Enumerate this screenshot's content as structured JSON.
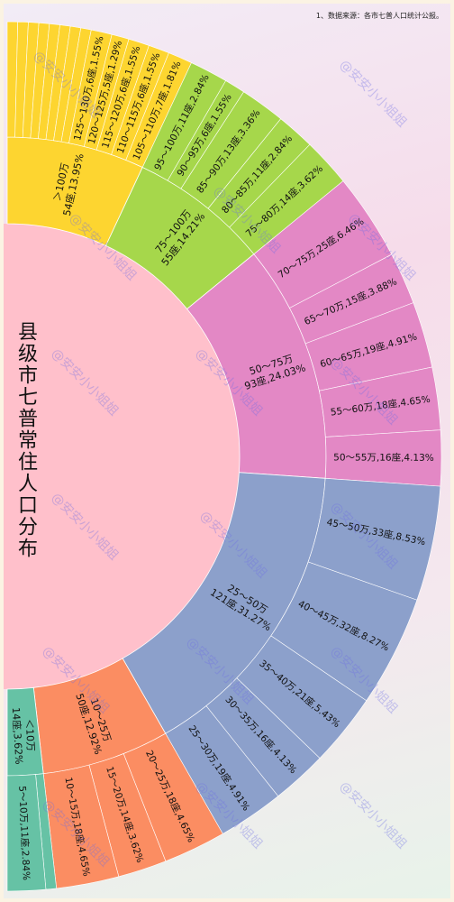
{
  "chart_data": {
    "type": "sunburst",
    "title": "县级市七普常住人口分布",
    "note": "1、数据来源：各市七普人口统计公报。",
    "watermark": "@安安小小姐姐",
    "center_color": "#ffc0cb",
    "children": [
      {
        "name": "＞100万",
        "label": "54座,13.95%",
        "value": 13.95,
        "color": "#fdd530",
        "children": [
          {
            "name": null,
            "value": 0.775
          },
          {
            "name": null,
            "value": 0.775
          },
          {
            "name": null,
            "value": 0.775
          },
          {
            "name": null,
            "value": 0.775
          },
          {
            "name": null,
            "value": 0.775
          },
          {
            "name": null,
            "value": 0.775
          },
          {
            "name": null,
            "value": 0.775
          },
          {
            "name": null,
            "value": 0.775
          },
          {
            "name": "125～130万,6座,1.55%",
            "value": 1.55
          },
          {
            "name": "120～125万,5座,1.29%",
            "value": 1.29
          },
          {
            "name": "115～120万,6座,1.55%",
            "value": 1.55
          },
          {
            "name": "110～115万,6座,1.55%",
            "value": 1.55
          },
          {
            "name": "105～110万,7座,1.81%",
            "value": 1.81
          }
        ]
      },
      {
        "name": "75～100万",
        "label": "55座,14.21%",
        "value": 14.21,
        "color": "#a6d74b",
        "children": [
          {
            "name": "95～100万,11座,2.84%",
            "value": 2.84
          },
          {
            "name": "90～95万,6座,1.55%",
            "value": 1.55
          },
          {
            "name": "85～90万,13座,3.36%",
            "value": 3.36
          },
          {
            "name": "80～85万,11座,2.84%",
            "value": 2.84
          },
          {
            "name": "75～80万,14座,3.62%",
            "value": 3.62
          }
        ]
      },
      {
        "name": "50～75万",
        "label": "93座,24.03%",
        "value": 24.03,
        "color": "#e388c5",
        "children": [
          {
            "name": "70～75万,25座,6.46%",
            "value": 6.46
          },
          {
            "name": "65～70万,15座,3.88%",
            "value": 3.88
          },
          {
            "name": "60～65万,19座,4.91%",
            "value": 4.91
          },
          {
            "name": "55～60万,18座,4.65%",
            "value": 4.65
          },
          {
            "name": "50～55万,16座,4.13%",
            "value": 4.13
          }
        ]
      },
      {
        "name": "25～50万",
        "label": "121座,31.27%",
        "value": 31.27,
        "color": "#8ca0cb",
        "children": [
          {
            "name": "45～50万,33座,8.53%",
            "value": 8.53
          },
          {
            "name": "40～45万,32座,8.27%",
            "value": 8.27
          },
          {
            "name": "35～40万,21座,5.43%",
            "value": 5.43
          },
          {
            "name": "30～35万,16座,4.13%",
            "value": 4.13
          },
          {
            "name": "25～30万,19座,4.91%",
            "value": 4.91
          }
        ]
      },
      {
        "name": "10～25万",
        "label": "50座,12.92%",
        "value": 12.92,
        "color": "#fb8d62",
        "children": [
          {
            "name": "20～25万,18座,4.65%",
            "value": 4.65
          },
          {
            "name": "15～20万,14座,3.62%",
            "value": 3.62
          },
          {
            "name": "10～15万,18座,4.65%",
            "value": 4.65
          }
        ]
      },
      {
        "name": "＜10万",
        "label": "14座,3.62%",
        "value": 3.62,
        "color": "#66c2a5",
        "children": [
          {
            "name": null,
            "value": 0.78
          },
          {
            "name": "5～10万,11座,2.84%",
            "value": 2.84
          }
        ]
      }
    ]
  }
}
